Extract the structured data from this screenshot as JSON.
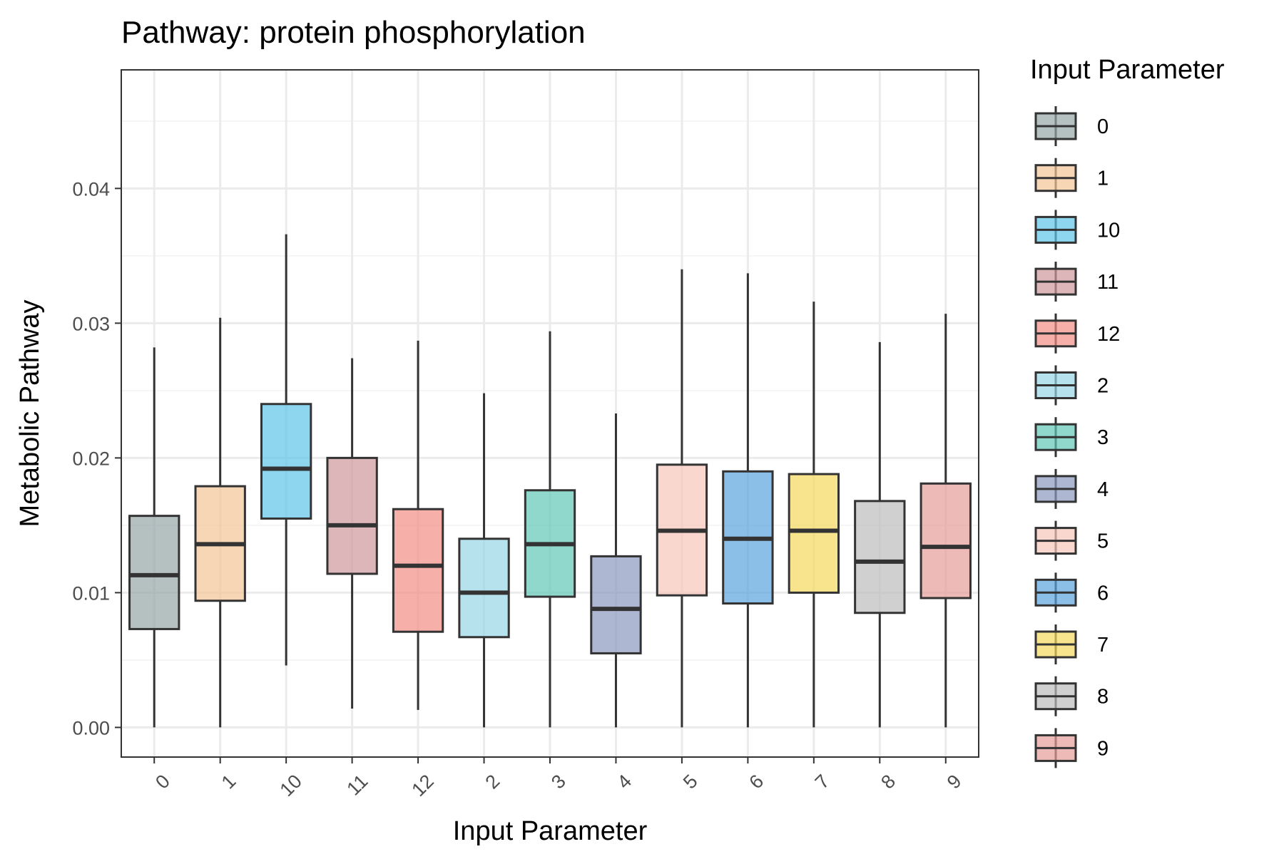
{
  "chart_data": {
    "type": "box",
    "title": "Pathway: protein phosphorylation",
    "xlabel": "Input Parameter",
    "ylabel": "Metabolic Pathway",
    "ylim": [
      -0.0022,
      0.0488
    ],
    "yticks": [
      0.0,
      0.01,
      0.02,
      0.03,
      0.04
    ],
    "ytick_labels": [
      "0.00",
      "0.01",
      "0.02",
      "0.03",
      "0.04"
    ],
    "grid": true,
    "legend": {
      "title": "Input Parameter",
      "position": "right"
    },
    "categories": [
      "0",
      "1",
      "10",
      "11",
      "12",
      "2",
      "3",
      "4",
      "5",
      "6",
      "7",
      "8",
      "9"
    ],
    "colors": [
      "#95a5a6",
      "#f4c597",
      "#5ec4e8",
      "#cf979b",
      "#f48d86",
      "#96d5e4",
      "#60c7b5",
      "#8a98be",
      "#f7c4b9",
      "#5aa4de",
      "#f4d85c",
      "#bcbcbc",
      "#e69c99"
    ],
    "boxes": [
      {
        "category": "0",
        "whisker_low": 0.0,
        "q1": 0.0073,
        "median": 0.0113,
        "q3": 0.0157,
        "whisker_high": 0.0282
      },
      {
        "category": "1",
        "whisker_low": 0.0,
        "q1": 0.0094,
        "median": 0.0136,
        "q3": 0.0179,
        "whisker_high": 0.0304
      },
      {
        "category": "10",
        "whisker_low": 0.0046,
        "q1": 0.0155,
        "median": 0.0192,
        "q3": 0.024,
        "whisker_high": 0.0366
      },
      {
        "category": "11",
        "whisker_low": 0.0014,
        "q1": 0.0114,
        "median": 0.015,
        "q3": 0.02,
        "whisker_high": 0.0274
      },
      {
        "category": "12",
        "whisker_low": 0.0013,
        "q1": 0.0071,
        "median": 0.012,
        "q3": 0.0162,
        "whisker_high": 0.0287
      },
      {
        "category": "2",
        "whisker_low": 0.0,
        "q1": 0.0067,
        "median": 0.01,
        "q3": 0.014,
        "whisker_high": 0.0248
      },
      {
        "category": "3",
        "whisker_low": 0.0,
        "q1": 0.0097,
        "median": 0.0136,
        "q3": 0.0176,
        "whisker_high": 0.0294
      },
      {
        "category": "4",
        "whisker_low": 0.0,
        "q1": 0.0055,
        "median": 0.0088,
        "q3": 0.0127,
        "whisker_high": 0.0233
      },
      {
        "category": "5",
        "whisker_low": 0.0,
        "q1": 0.0098,
        "median": 0.0146,
        "q3": 0.0195,
        "whisker_high": 0.034
      },
      {
        "category": "6",
        "whisker_low": 0.0,
        "q1": 0.0092,
        "median": 0.014,
        "q3": 0.019,
        "whisker_high": 0.0337
      },
      {
        "category": "7",
        "whisker_low": 0.0,
        "q1": 0.01,
        "median": 0.0146,
        "q3": 0.0188,
        "whisker_high": 0.0316
      },
      {
        "category": "8",
        "whisker_low": 0.0,
        "q1": 0.0085,
        "median": 0.0123,
        "q3": 0.0168,
        "whisker_high": 0.0286
      },
      {
        "category": "9",
        "whisker_low": 0.0,
        "q1": 0.0096,
        "median": 0.0134,
        "q3": 0.0181,
        "whisker_high": 0.0307
      }
    ]
  }
}
